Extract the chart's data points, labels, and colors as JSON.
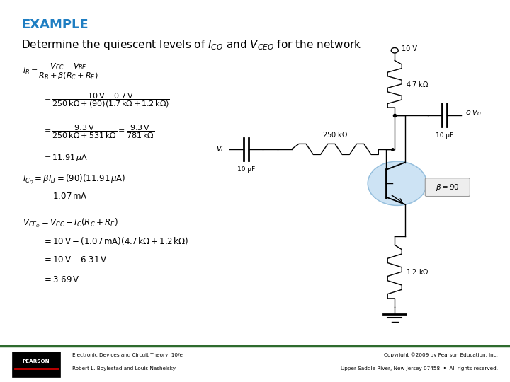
{
  "title": "EXAMPLE",
  "title_color": "#1F7EC2",
  "bg_color": "#FFFFFF",
  "footer_line_color": "#2E6B2E",
  "footer_left_line1": "Electronic Devices and Circuit Theory, 10/e",
  "footer_left_line2": "Robert L. Boylestad and Louis Nashelsky",
  "footer_right_line1": "Copyright ©2009 by Pearson Education, Inc.",
  "footer_right_line2": "Upper Saddle River, New Jersey 07458  •  All rights reserved."
}
